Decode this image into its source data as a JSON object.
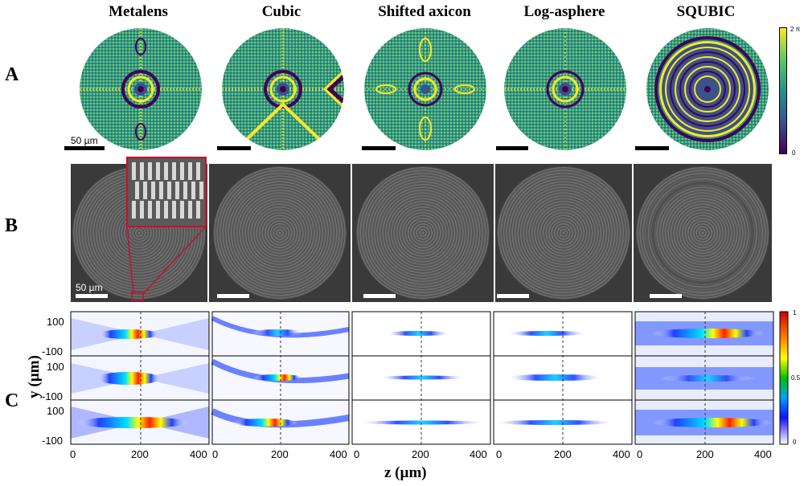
{
  "columns": [
    {
      "id": "metalens",
      "title": "Metalens"
    },
    {
      "id": "cubic",
      "title": "Cubic"
    },
    {
      "id": "shifted-axicon",
      "title": "Shifted axicon"
    },
    {
      "id": "log-asphere",
      "title": "Log-asphere"
    },
    {
      "id": "squbic",
      "title": "SQUBIC"
    }
  ],
  "rows": {
    "a": "A",
    "b": "B",
    "c": "C"
  },
  "scale_labels": {
    "phase_panel": "50 µm",
    "sem_panel": "50 µm"
  },
  "phase_colorbar": {
    "top": "2 π",
    "bottom": "0",
    "colormap": "viridis"
  },
  "intensity_colorbar": {
    "top": "1",
    "mid": "0.5",
    "bottom": "0",
    "colormap": "jet-white"
  },
  "axes": {
    "y_title": "y (µm)",
    "y_ticks": [
      "100",
      "-100"
    ],
    "x_title": "z (µm)",
    "x_ticks": [
      "0",
      "200",
      "400"
    ]
  },
  "colors": {
    "viridis_dark": "#440154",
    "viridis_mid": "#21918c",
    "viridis_light": "#fde725",
    "inset_border": "#c8102e"
  }
}
